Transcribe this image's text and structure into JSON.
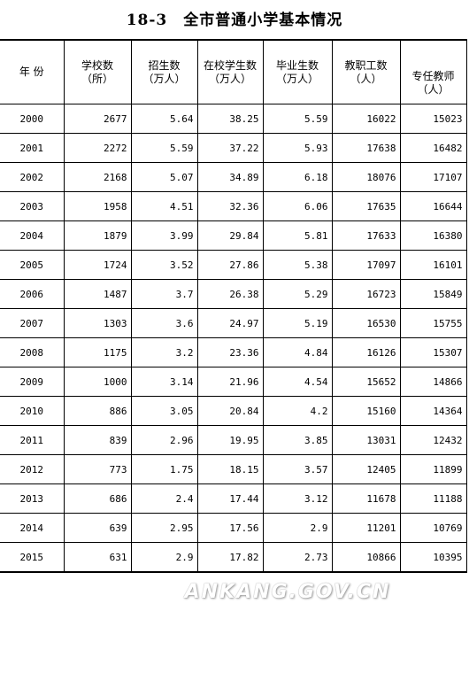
{
  "page_title": "18-3　全市普通小学基本情况",
  "headers": [
    {
      "line1": "年 份",
      "line2": ""
    },
    {
      "line1": "学校数",
      "line2": "（所）"
    },
    {
      "line1": "招生数",
      "line2": "（万人）"
    },
    {
      "line1": "在校学生数",
      "line2": "（万人）"
    },
    {
      "line1": "毕业生数",
      "line2": "（万人）"
    },
    {
      "line1": "教职工数",
      "line2": "（人）"
    },
    {
      "line1": "专任教师",
      "line2": "（人）"
    }
  ],
  "rows": [
    [
      "2000",
      "2677",
      "5.64",
      "38.25",
      "5.59",
      "16022",
      "15023"
    ],
    [
      "2001",
      "2272",
      "5.59",
      "37.22",
      "5.93",
      "17638",
      "16482"
    ],
    [
      "2002",
      "2168",
      "5.07",
      "34.89",
      "6.18",
      "18076",
      "17107"
    ],
    [
      "2003",
      "1958",
      "4.51",
      "32.36",
      "6.06",
      "17635",
      "16644"
    ],
    [
      "2004",
      "1879",
      "3.99",
      "29.84",
      "5.81",
      "17633",
      "16380"
    ],
    [
      "2005",
      "1724",
      "3.52",
      "27.86",
      "5.38",
      "17097",
      "16101"
    ],
    [
      "2006",
      "1487",
      "3.7",
      "26.38",
      "5.29",
      "16723",
      "15849"
    ],
    [
      "2007",
      "1303",
      "3.6",
      "24.97",
      "5.19",
      "16530",
      "15755"
    ],
    [
      "2008",
      "1175",
      "3.2",
      "23.36",
      "4.84",
      "16126",
      "15307"
    ],
    [
      "2009",
      "1000",
      "3.14",
      "21.96",
      "4.54",
      "15652",
      "14866"
    ],
    [
      "2010",
      "886",
      "3.05",
      "20.84",
      "4.2",
      "15160",
      "14364"
    ],
    [
      "2011",
      "839",
      "2.96",
      "19.95",
      "3.85",
      "13031",
      "12432"
    ],
    [
      "2012",
      "773",
      "1.75",
      "18.15",
      "3.57",
      "12405",
      "11899"
    ],
    [
      "2013",
      "686",
      "2.4",
      "17.44",
      "3.12",
      "11678",
      "11188"
    ],
    [
      "2014",
      "639",
      "2.95",
      "17.56",
      "2.9",
      "11201",
      "10769"
    ],
    [
      "2015",
      "631",
      "2.9",
      "17.82",
      "2.73",
      "10866",
      "10395"
    ]
  ],
  "watermark": "ANKANG.GOV.CN"
}
